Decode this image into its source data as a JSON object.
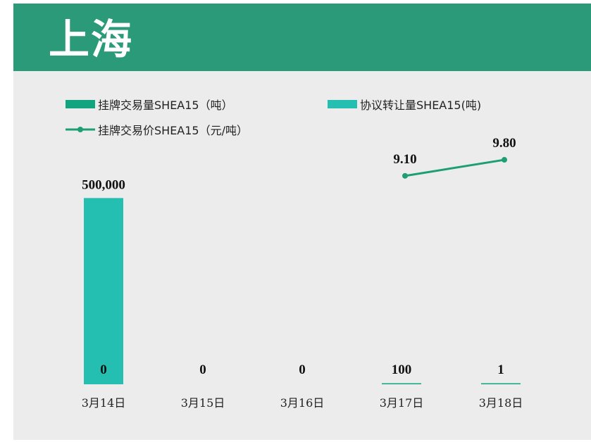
{
  "header": {
    "title": "上海",
    "background": "#2a9a78"
  },
  "legend": [
    {
      "label": "挂牌交易量SHEA15（吨）",
      "kind": "bar",
      "color": "#12a37f"
    },
    {
      "label": "协议转让量SHEA15(吨)",
      "kind": "bar",
      "color": "#25bfb2"
    },
    {
      "label": "挂牌交易价SHEA15（元/吨）",
      "kind": "line",
      "color": "#1d9e74"
    }
  ],
  "chart_data": {
    "type": "bar",
    "categories": [
      "3月14日",
      "3月15日",
      "3月16日",
      "3月17日",
      "3月18日"
    ],
    "series": [
      {
        "name": "挂牌交易量SHEA15（吨）",
        "type": "bar",
        "axis": "left",
        "color": "#12a37f",
        "values": [
          0,
          0,
          0,
          100,
          1
        ],
        "labels": [
          "0",
          "0",
          "0",
          "100",
          "1"
        ]
      },
      {
        "name": "协议转让量SHEA15(吨)",
        "type": "bar",
        "axis": "left",
        "color": "#25bfb2",
        "values": [
          500000,
          null,
          null,
          null,
          null
        ],
        "labels": [
          "500,000",
          "",
          "",
          "",
          ""
        ]
      },
      {
        "name": "挂牌交易价SHEA15（元/吨）",
        "type": "line",
        "axis": "right",
        "color": "#1d9e74",
        "values": [
          null,
          null,
          null,
          9.1,
          9.8
        ],
        "labels": [
          "",
          "",
          "",
          "9.10",
          "9.80"
        ]
      }
    ],
    "ylim_left": [
      0,
      560000
    ],
    "ylim_right": [
      0,
      11
    ],
    "grid": false,
    "legend_position": "top"
  }
}
